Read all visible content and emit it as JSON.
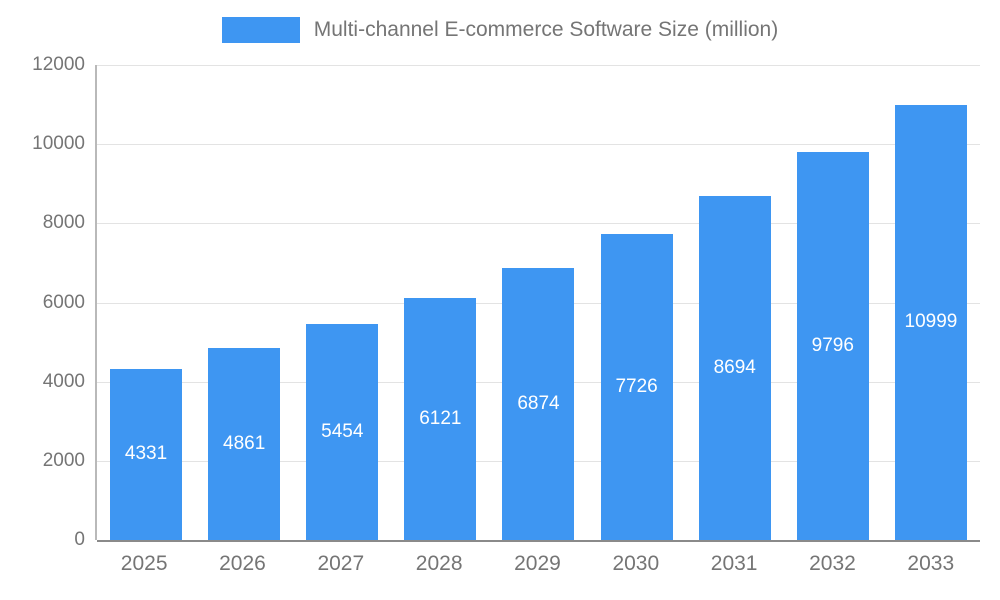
{
  "chart_data": {
    "type": "bar",
    "title": "Multi-channel E-commerce Software Size (million)",
    "legend": {
      "label": "Multi-channel E-commerce Software Size (million)",
      "position": "top",
      "swatch_color": "#3e96f2"
    },
    "categories": [
      "2025",
      "2026",
      "2027",
      "2028",
      "2029",
      "2030",
      "2031",
      "2032",
      "2033"
    ],
    "values": [
      4331,
      4861,
      5454,
      6121,
      6874,
      7726,
      8694,
      9796,
      10999
    ],
    "xlabel": "",
    "ylabel": "",
    "ylim": [
      0,
      12000
    ],
    "yticks": [
      0,
      2000,
      4000,
      6000,
      8000,
      10000,
      12000
    ],
    "grid": true,
    "bar_color": "#3e96f2",
    "value_label_color": "#ffffff",
    "axis_text_color": "#757575",
    "gridline_color": "#e3e3e3"
  }
}
